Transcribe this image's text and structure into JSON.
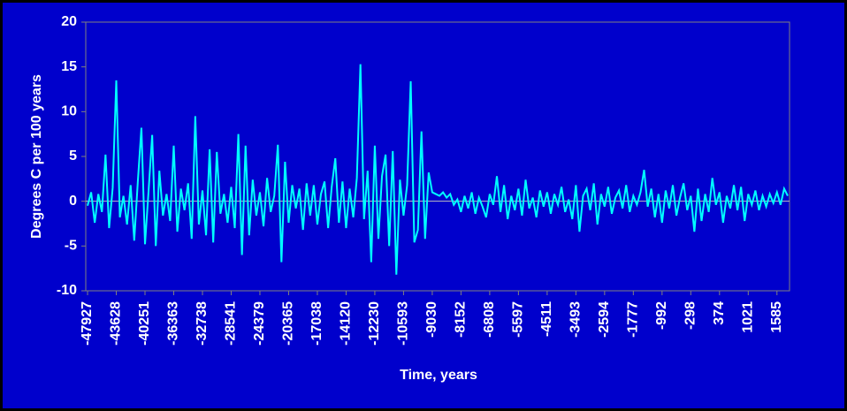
{
  "chart_data": {
    "type": "line",
    "y_label": "Degrees C per 100 years",
    "x_label": "Time, years",
    "color": "#00ffff",
    "ylim": [
      -10,
      20
    ],
    "yticks": [
      -10,
      -5,
      0,
      5,
      10,
      15,
      20
    ],
    "categories": [
      "-47927",
      null,
      null,
      null,
      null,
      null,
      null,
      null,
      "-43628",
      null,
      null,
      null,
      null,
      null,
      null,
      null,
      "-40251",
      null,
      null,
      null,
      null,
      null,
      null,
      null,
      "-36363",
      null,
      null,
      null,
      null,
      null,
      null,
      null,
      "-32738",
      null,
      null,
      null,
      null,
      null,
      null,
      null,
      "-28541",
      null,
      null,
      null,
      null,
      null,
      null,
      null,
      "-24379",
      null,
      null,
      null,
      null,
      null,
      null,
      null,
      "-20365",
      null,
      null,
      null,
      null,
      null,
      null,
      null,
      "-17038",
      null,
      null,
      null,
      null,
      null,
      null,
      null,
      "-14120",
      null,
      null,
      null,
      null,
      null,
      null,
      null,
      "-12230",
      null,
      null,
      null,
      null,
      null,
      null,
      null,
      "-10593",
      null,
      null,
      null,
      null,
      null,
      null,
      null,
      "-9030",
      null,
      null,
      null,
      null,
      null,
      null,
      null,
      "-8152",
      null,
      null,
      null,
      null,
      null,
      null,
      null,
      "-6808",
      null,
      null,
      null,
      null,
      null,
      null,
      null,
      "-5597",
      null,
      null,
      null,
      null,
      null,
      null,
      null,
      "-4511",
      null,
      null,
      null,
      null,
      null,
      null,
      null,
      "-3493",
      null,
      null,
      null,
      null,
      null,
      null,
      null,
      "-2594",
      null,
      null,
      null,
      null,
      null,
      null,
      null,
      "-1777",
      null,
      null,
      null,
      null,
      null,
      null,
      null,
      "-992",
      null,
      null,
      null,
      null,
      null,
      null,
      null,
      "-298",
      null,
      null,
      null,
      null,
      null,
      null,
      null,
      "374",
      null,
      null,
      null,
      null,
      null,
      null,
      null,
      "1021",
      null,
      null,
      null,
      null,
      null,
      null,
      null,
      "1585",
      null,
      null,
      null
    ],
    "values": [
      -0.5,
      1.0,
      -2.4,
      0.8,
      -1.2,
      5.2,
      -3.0,
      1.5,
      13.5,
      -1.8,
      0.6,
      -2.6,
      1.8,
      -4.4,
      2.2,
      8.2,
      -4.8,
      1.2,
      7.4,
      -5.0,
      3.4,
      -1.6,
      0.8,
      -2.2,
      6.2,
      -3.4,
      1.4,
      -1.0,
      2.0,
      -4.2,
      9.5,
      -2.6,
      1.2,
      -3.8,
      5.8,
      -4.6,
      5.5,
      -1.4,
      0.8,
      -2.4,
      1.6,
      -3.0,
      7.5,
      -6.0,
      6.2,
      -3.8,
      2.4,
      -1.6,
      1.0,
      -2.8,
      2.6,
      -1.2,
      0.6,
      6.3,
      -6.8,
      4.4,
      -2.4,
      1.8,
      -0.8,
      1.4,
      -3.2,
      2.0,
      -1.6,
      1.8,
      -2.6,
      0.8,
      2.2,
      -3.0,
      1.6,
      4.8,
      -2.4,
      2.2,
      -3.0,
      1.4,
      -1.8,
      2.6,
      15.3,
      -2.0,
      3.4,
      -6.8,
      6.2,
      -4.2,
      2.8,
      5.2,
      -5.0,
      5.6,
      -8.2,
      2.4,
      -1.6,
      1.8,
      13.4,
      -4.6,
      -3.2,
      7.8,
      -4.2,
      3.2,
      1.0,
      0.8,
      0.6,
      1.0,
      0.4,
      0.8,
      -0.4,
      0.2,
      -1.2,
      0.6,
      -0.8,
      1.0,
      -1.4,
      0.4,
      -0.6,
      -1.8,
      0.8,
      -0.4,
      2.8,
      -1.2,
      1.8,
      -2.0,
      0.6,
      -1.0,
      1.4,
      -1.6,
      2.4,
      -0.8,
      0.4,
      -1.8,
      1.2,
      -0.6,
      1.0,
      -1.4,
      0.8,
      -0.4,
      1.6,
      -1.2,
      0.2,
      -2.0,
      1.8,
      -3.4,
      0.6,
      1.4,
      -1.0,
      2.0,
      -2.6,
      0.8,
      -0.6,
      1.6,
      -1.4,
      0.4,
      1.2,
      -0.8,
      1.8,
      -1.2,
      0.6,
      -0.4,
      1.0,
      3.5,
      -0.6,
      1.4,
      -1.8,
      0.8,
      -2.4,
      1.2,
      -0.8,
      1.8,
      -1.6,
      0.4,
      2.0,
      -1.0,
      0.6,
      -3.4,
      1.4,
      -2.2,
      0.8,
      -1.2,
      2.6,
      -0.4,
      1.0,
      -2.4,
      0.6,
      -0.8,
      1.8,
      -1.0,
      1.6,
      -2.2,
      0.8,
      -0.4,
      1.2,
      -1.0,
      0.6,
      -0.6,
      0.8,
      -0.2,
      1.0,
      -0.4,
      1.4,
      0.6
    ]
  }
}
